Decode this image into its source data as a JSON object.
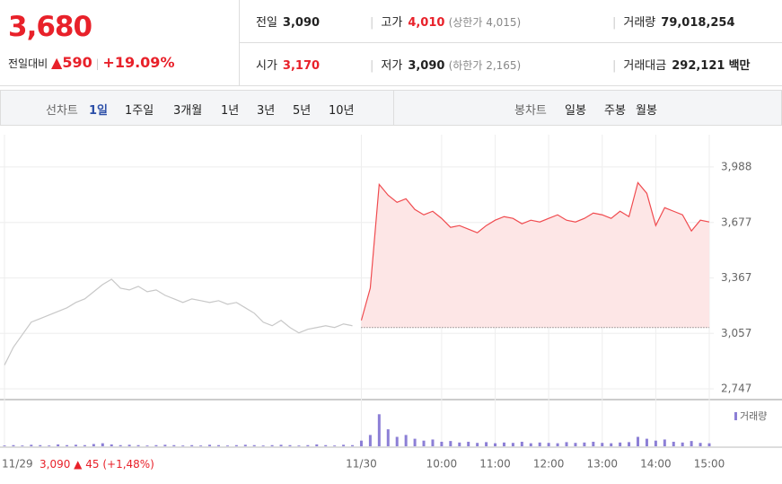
{
  "header": {
    "price": "3,680",
    "change_label": "전일대비",
    "change": "590",
    "change_pct": "+19.09%",
    "stats": [
      [
        {
          "label": "전일",
          "value": "3,090"
        },
        {
          "label": "고가",
          "value": "4,010",
          "note": "(상한가 4,015)"
        },
        {
          "label": "거래량",
          "value": "79,018,254"
        }
      ],
      [
        {
          "label": "시가",
          "value": "3,170"
        },
        {
          "label": "저가",
          "value": "3,090",
          "note": "(하한가 2,165)"
        },
        {
          "label": "거래대금",
          "value": "292,121",
          "unit": "백만"
        }
      ]
    ]
  },
  "tabs": {
    "line_label": "선차트",
    "line_tabs": [
      "1일",
      "1주일",
      "3개월",
      "1년",
      "3년",
      "5년",
      "10년"
    ],
    "candle_label": "봉차트",
    "candle_tabs": [
      "일봉",
      "주봉",
      "월봉"
    ]
  },
  "chart_data": {
    "type": "line",
    "categories": [
      "11/29",
      null,
      null,
      null,
      null,
      null,
      null,
      null,
      null,
      null,
      null,
      null,
      null,
      null,
      null,
      null,
      null,
      null,
      null,
      null,
      null,
      null,
      null,
      null,
      null,
      null,
      null,
      null,
      null,
      null,
      null,
      null,
      null,
      null,
      null,
      null,
      null,
      null,
      null,
      null,
      "11/30",
      null,
      null,
      null,
      null,
      null,
      null,
      null,
      null,
      "10:00",
      null,
      null,
      null,
      null,
      null,
      "11:00",
      null,
      null,
      null,
      null,
      null,
      "12:00",
      null,
      null,
      null,
      null,
      null,
      "13:00",
      null,
      null,
      null,
      null,
      null,
      "14:00",
      null,
      null,
      null,
      null,
      null,
      "15:00"
    ],
    "series": [
      {
        "color": "#c8c8c8",
        "values": [
          2880,
          2980,
          3050,
          3120,
          3140,
          3160,
          3180,
          3200,
          3230,
          3250,
          3290,
          3330,
          3360,
          3310,
          3300,
          3320,
          3290,
          3300,
          3270,
          3250,
          3230,
          3250,
          3240,
          3230,
          3240,
          3220,
          3230,
          3200,
          3170,
          3120,
          3100,
          3130,
          3090,
          3060,
          3080,
          3090,
          3100,
          3090,
          3110,
          3100,
          null,
          null,
          null,
          null,
          null,
          null,
          null,
          null,
          null,
          null,
          null,
          null,
          null,
          null,
          null,
          null,
          null,
          null,
          null,
          null,
          null,
          null,
          null,
          null,
          null,
          null,
          null,
          null,
          null,
          null,
          null,
          null,
          null,
          null,
          null,
          null,
          null,
          null,
          null,
          null
        ]
      },
      {
        "color": "#f04b4f",
        "fill": "#fde6e6",
        "values": [
          null,
          null,
          null,
          null,
          null,
          null,
          null,
          null,
          null,
          null,
          null,
          null,
          null,
          null,
          null,
          null,
          null,
          null,
          null,
          null,
          null,
          null,
          null,
          null,
          null,
          null,
          null,
          null,
          null,
          null,
          null,
          null,
          null,
          null,
          null,
          null,
          null,
          null,
          null,
          null,
          3130,
          3310,
          3890,
          3830,
          3790,
          3810,
          3750,
          3720,
          3740,
          3700,
          3650,
          3660,
          3640,
          3620,
          3660,
          3690,
          3710,
          3700,
          3670,
          3690,
          3680,
          3700,
          3720,
          3690,
          3680,
          3700,
          3730,
          3720,
          3700,
          3740,
          3710,
          3900,
          3840,
          3660,
          3760,
          3740,
          3720,
          3630,
          3690,
          3680
        ]
      }
    ],
    "base": 3090,
    "ylim": [
      2687,
      4168
    ],
    "yticks": [
      {
        "value": 3988,
        "label": "3,988"
      },
      {
        "value": 3677,
        "label": "3,677"
      },
      {
        "value": 3367,
        "label": "3,367"
      },
      {
        "value": 3057,
        "label": "3,057"
      },
      {
        "value": 2747,
        "label": "2,747"
      }
    ],
    "volume": {
      "name": "거래량",
      "color": "#8c7fd6",
      "ylim": [
        0,
        100
      ],
      "values": [
        2,
        3,
        2,
        4,
        3,
        2,
        5,
        3,
        4,
        3,
        6,
        8,
        5,
        3,
        4,
        3,
        2,
        3,
        4,
        3,
        2,
        3,
        2,
        4,
        3,
        2,
        3,
        4,
        3,
        2,
        3,
        4,
        3,
        2,
        3,
        5,
        3,
        2,
        4,
        3,
        15,
        30,
        85,
        45,
        25,
        30,
        20,
        15,
        18,
        12,
        14,
        10,
        12,
        9,
        11,
        8,
        10,
        9,
        12,
        8,
        10,
        9,
        8,
        11,
        9,
        10,
        12,
        9,
        8,
        10,
        11,
        25,
        20,
        15,
        18,
        12,
        10,
        14,
        9,
        8
      ]
    },
    "footer": {
      "close": "3,090",
      "change": "45",
      "pct": "(+1,48%)"
    }
  }
}
